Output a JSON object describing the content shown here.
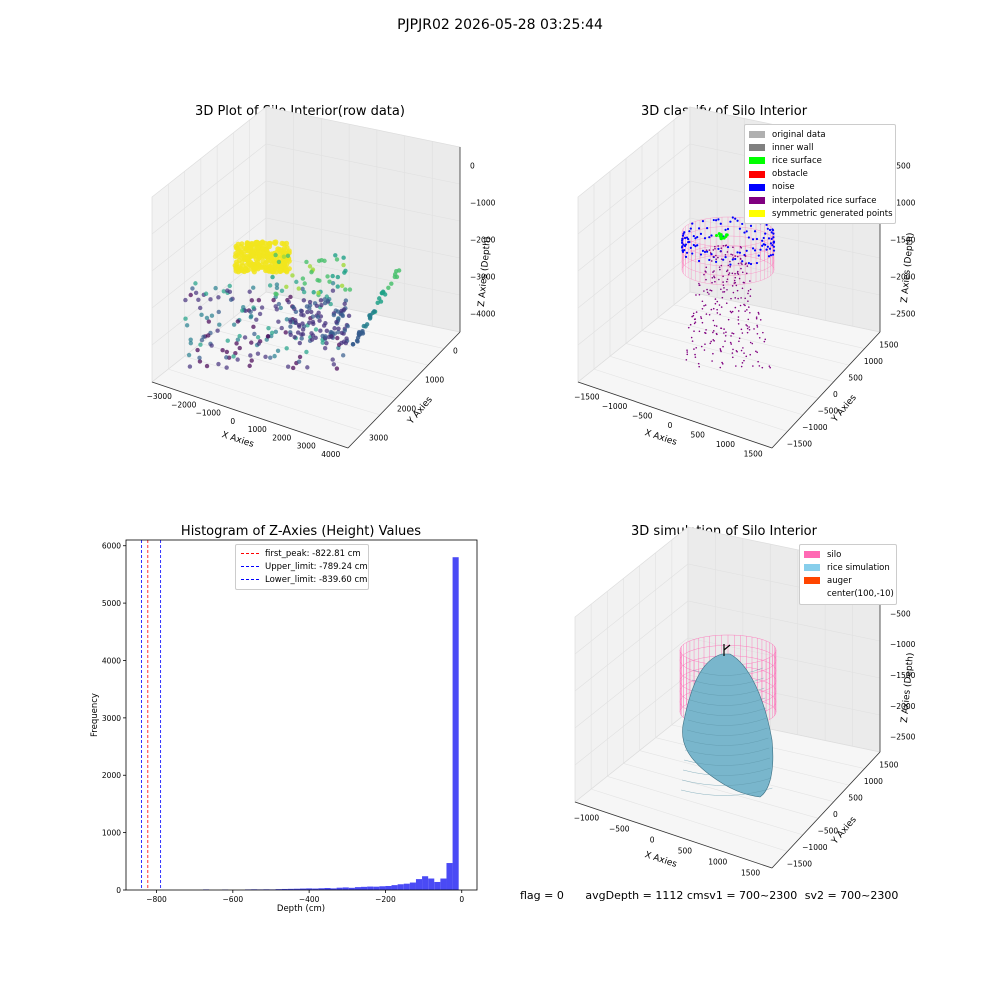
{
  "suptitle": "PJPJR02 2026-05-28 03:25:44",
  "footer": {
    "flag": "flag = 0",
    "avg_depth": "avgDepth = 1112 cmsv1 = 700~2300",
    "sv2": "sv2 = 700~2300"
  },
  "colors": {
    "histogram_bar": "#4a4af5",
    "first_peak": "#ff0000",
    "limits": "#0000ff",
    "silo_wire": "#ff69b4",
    "rice_surface": "#79b6cc",
    "noise": "#0000ff"
  },
  "chart_data": [
    {
      "type": "scatter",
      "panel": "3d",
      "title": "3D Plot of Silo Interior(row data)",
      "xlabel": "X Axies",
      "ylabel": "Y Axies",
      "zlabel": "Z Axies (Depth)",
      "x_ticks": [
        "−3000",
        "−2000",
        "−1000",
        "0",
        "1000",
        "2000",
        "3000",
        "4000"
      ],
      "y_ticks": [
        "0",
        "1000",
        "2000",
        "3000"
      ],
      "z_ticks": [
        "0",
        "−1000",
        "−2000",
        "−3000",
        "−4000"
      ],
      "colormap": "viridis"
    },
    {
      "type": "scatter",
      "panel": "3d",
      "title": "3D classify of Silo Interior",
      "xlabel": "X Axies",
      "ylabel": "Y Axies",
      "zlabel": "Z Axies (Depth)",
      "x_ticks": [
        "−1500",
        "−1000",
        "−500",
        "0",
        "500",
        "1000",
        "1500"
      ],
      "y_ticks": [
        "1500",
        "1000",
        "500",
        "0",
        "−500",
        "−1000",
        "−1500"
      ],
      "z_ticks": [
        "−500",
        "−1000",
        "−1500",
        "−2000",
        "−2500"
      ],
      "legend": [
        {
          "label": "original data",
          "color": "#b0b0b0"
        },
        {
          "label": "inner wall",
          "color": "#808080"
        },
        {
          "label": "rice surface",
          "color": "#00ff00"
        },
        {
          "label": "obstacle",
          "color": "#ff0000"
        },
        {
          "label": "noise",
          "color": "#0000ff"
        },
        {
          "label": "interpolated rice surface",
          "color": "#800080"
        },
        {
          "label": "symmetric generated points",
          "color": "#ffff00"
        }
      ]
    },
    {
      "type": "bar",
      "panel": "histogram",
      "title": "Histogram of Z-Axies (Height) Values",
      "xlabel": "Depth (cm)",
      "ylabel": "Frequency",
      "xlim": [
        -880,
        40
      ],
      "ylim": [
        0,
        6100
      ],
      "x_ticks": [
        -800,
        -600,
        -400,
        -200,
        0
      ],
      "x_tick_labels": [
        "−800",
        "−600",
        "−400",
        "−200",
        "0"
      ],
      "y_ticks": [
        0,
        1000,
        2000,
        3000,
        4000,
        5000,
        6000
      ],
      "bin_width": 16,
      "bins": [
        {
          "x": -670,
          "v": 10
        },
        {
          "x": -620,
          "v": 8
        },
        {
          "x": -560,
          "v": 10
        },
        {
          "x": -544,
          "v": 12
        },
        {
          "x": -528,
          "v": 10
        },
        {
          "x": -512,
          "v": 12
        },
        {
          "x": -496,
          "v": 10
        },
        {
          "x": -480,
          "v": 15
        },
        {
          "x": -464,
          "v": 18
        },
        {
          "x": -448,
          "v": 20
        },
        {
          "x": -432,
          "v": 22
        },
        {
          "x": -416,
          "v": 25
        },
        {
          "x": -400,
          "v": 28
        },
        {
          "x": -384,
          "v": 25
        },
        {
          "x": -368,
          "v": 30
        },
        {
          "x": -352,
          "v": 35
        },
        {
          "x": -336,
          "v": 28
        },
        {
          "x": -320,
          "v": 40
        },
        {
          "x": -304,
          "v": 45
        },
        {
          "x": -288,
          "v": 38
        },
        {
          "x": -272,
          "v": 50
        },
        {
          "x": -256,
          "v": 55
        },
        {
          "x": -240,
          "v": 60
        },
        {
          "x": -224,
          "v": 58
        },
        {
          "x": -208,
          "v": 65
        },
        {
          "x": -192,
          "v": 70
        },
        {
          "x": -176,
          "v": 85
        },
        {
          "x": -160,
          "v": 100
        },
        {
          "x": -144,
          "v": 110
        },
        {
          "x": -128,
          "v": 130
        },
        {
          "x": -112,
          "v": 190
        },
        {
          "x": -96,
          "v": 240
        },
        {
          "x": -80,
          "v": 200
        },
        {
          "x": -64,
          "v": 140
        },
        {
          "x": -48,
          "v": 200
        },
        {
          "x": -32,
          "v": 470
        },
        {
          "x": -16,
          "v": 5800
        }
      ],
      "vlines": [
        {
          "label": "first_peak: -822.81 cm",
          "x": -822.81,
          "color": "#ff0000"
        },
        {
          "label": "Upper_limit: -789.24 cm",
          "x": -789.24,
          "color": "#0000ff"
        },
        {
          "label": "Lower_limit: -839.60 cm",
          "x": -839.6,
          "color": "#0000ff"
        }
      ]
    },
    {
      "type": "surface",
      "panel": "3d",
      "title": "3D simulation of Silo Interior",
      "xlabel": "X Axies",
      "ylabel": "Y Axies",
      "zlabel": "Z Axies (Depth)",
      "x_ticks": [
        "−1000",
        "−500",
        "0",
        "500",
        "1000",
        "1500"
      ],
      "y_ticks": [
        "1500",
        "1000",
        "500",
        "0",
        "−500",
        "−1000",
        "−1500"
      ],
      "z_ticks": [
        "0",
        "−500",
        "−1000",
        "−1500",
        "−2000",
        "−2500"
      ],
      "legend": [
        {
          "label": "silo",
          "color": "#ff69b4"
        },
        {
          "label": "rice simulation",
          "color": "#87ceeb"
        },
        {
          "label": "auger",
          "color": "#ff4500"
        },
        {
          "label": "center(100,-10)",
          "color": ""
        }
      ]
    }
  ]
}
